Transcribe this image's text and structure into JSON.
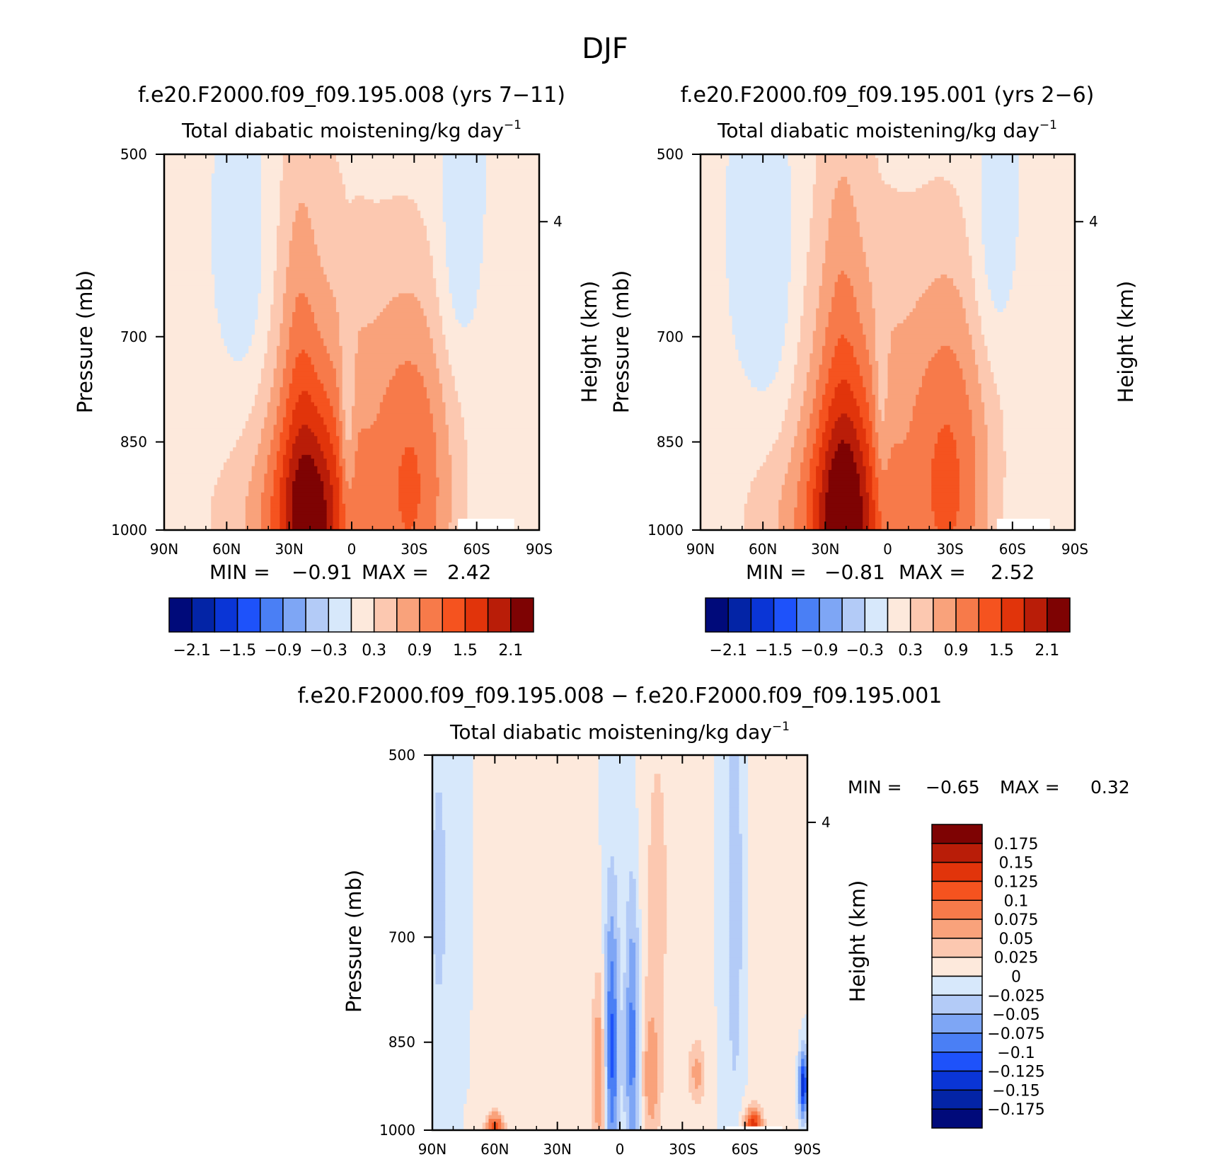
{
  "figure": {
    "title": "DJF"
  },
  "colors": {
    "palette": [
      "#000a7a",
      "#0324a6",
      "#0a35d6",
      "#1e52fa",
      "#4a7ff5",
      "#7ea6f5",
      "#b3cbf7",
      "#d7e8fb",
      "#fde9dc",
      "#fcc8b0",
      "#f9a27b",
      "#f77a4a",
      "#f5531f",
      "#e1340b",
      "#b91d08",
      "#7e0303"
    ],
    "background": "#d7e8fb",
    "missing": "#ffffff"
  },
  "chart_data": [
    {
      "type": "heatmap",
      "panel": "left",
      "title": "f.e20.F2000.f09_f09.195.008 (yrs 7−11)",
      "subtitle": "Total diabatic moistening/kg day",
      "subtitle_exp": "−1",
      "ylabel": "Pressure (mb)",
      "ylabel_right": "Height (km)",
      "xticks": [
        "90N",
        "60N",
        "30N",
        "0",
        "30S",
        "60S",
        "90S"
      ],
      "xlim": [
        -90,
        90
      ],
      "yticks": [
        500,
        700,
        850,
        1000
      ],
      "ylim": [
        1000,
        500
      ],
      "height_ticks": [
        4
      ],
      "stats": {
        "min_label": "MIN =",
        "min": "−0.91",
        "max_label": "MAX =",
        "max": "2.42"
      },
      "levels": [
        -2.4,
        -2.1,
        -1.8,
        -1.5,
        -1.2,
        -0.9,
        -0.6,
        -0.3,
        0,
        0.3,
        0.6,
        0.9,
        1.2,
        1.5,
        1.8,
        2.1,
        2.4
      ],
      "colorbar_labels": [
        "−2.1",
        "−1.5",
        "−0.9",
        "−0.3",
        "0.3",
        "0.9",
        "1.5",
        "2.1"
      ],
      "features": [
        {
          "lat": 17,
          "p": 1000,
          "slat": 22,
          "sp": 330,
          "amp": 0.95
        },
        {
          "lat": 20,
          "p": 985,
          "slat": 12,
          "sp": 140,
          "amp": 1.35
        },
        {
          "lat": 25,
          "p": 720,
          "slat": 6,
          "sp": 200,
          "amp": 0.35
        },
        {
          "lat": -30,
          "p": 960,
          "slat": 15,
          "sp": 230,
          "amp": 1.05
        },
        {
          "lat": -30,
          "p": 770,
          "slat": 24,
          "sp": 150,
          "amp": 0.18
        },
        {
          "lat": 55,
          "p": 975,
          "slat": 22,
          "sp": 100,
          "amp": 0.28
        },
        {
          "lat": 2,
          "p": 820,
          "slat": 2.5,
          "sp": 120,
          "amp": -0.55
        },
        {
          "lat": 50,
          "p": 620,
          "slat": 8,
          "sp": 110,
          "amp": -0.35
        },
        {
          "lat": -50,
          "p": 620,
          "slat": 7,
          "sp": 110,
          "amp": -0.35
        }
      ],
      "missing_regions": [
        {
          "lat_from": -51,
          "lat_to": -78,
          "p_from": 980,
          "p_to": 1000
        }
      ]
    },
    {
      "type": "heatmap",
      "panel": "right",
      "title": "f.e20.F2000.f09_f09.195.001 (yrs 2−6)",
      "subtitle": "Total diabatic moistening/kg day",
      "subtitle_exp": "−1",
      "ylabel": "Pressure (mb)",
      "ylabel_right": "Height (km)",
      "xticks": [
        "90N",
        "60N",
        "30N",
        "0",
        "30S",
        "60S",
        "90S"
      ],
      "xlim": [
        -90,
        90
      ],
      "yticks": [
        500,
        700,
        850,
        1000
      ],
      "ylim": [
        1000,
        500
      ],
      "height_ticks": [
        4
      ],
      "stats": {
        "min_label": "MIN =",
        "min": "−0.81",
        "max_label": "MAX =",
        "max": "2.52"
      },
      "levels": [
        -2.4,
        -2.1,
        -1.8,
        -1.5,
        -1.2,
        -0.9,
        -0.6,
        -0.3,
        0,
        0.3,
        0.6,
        0.9,
        1.2,
        1.5,
        1.8,
        2.1,
        2.4
      ],
      "colorbar_labels": [
        "−2.1",
        "−1.5",
        "−0.9",
        "−0.3",
        "0.3",
        "0.9",
        "1.5",
        "2.1"
      ],
      "features": [
        {
          "lat": 19,
          "p": 1000,
          "slat": 22,
          "sp": 330,
          "amp": 1.0
        },
        {
          "lat": 21,
          "p": 985,
          "slat": 11,
          "sp": 140,
          "amp": 1.4
        },
        {
          "lat": 22,
          "p": 700,
          "slat": 7,
          "sp": 210,
          "amp": 0.35
        },
        {
          "lat": -30,
          "p": 960,
          "slat": 15,
          "sp": 240,
          "amp": 1.1
        },
        {
          "lat": -30,
          "p": 760,
          "slat": 24,
          "sp": 150,
          "amp": 0.2
        },
        {
          "lat": 55,
          "p": 975,
          "slat": 22,
          "sp": 100,
          "amp": 0.28
        },
        {
          "lat": 3,
          "p": 800,
          "slat": 2.5,
          "sp": 110,
          "amp": -0.4
        },
        {
          "lat": 55,
          "p": 640,
          "slat": 9,
          "sp": 130,
          "amp": -0.35
        },
        {
          "lat": -50,
          "p": 610,
          "slat": 7,
          "sp": 100,
          "amp": -0.35
        }
      ],
      "missing_regions": [
        {
          "lat_from": -53,
          "lat_to": -78,
          "p_from": 980,
          "p_to": 1000
        }
      ]
    },
    {
      "type": "heatmap",
      "panel": "diff",
      "title": "f.e20.F2000.f09_f09.195.008 − f.e20.F2000.f09_f09.195.001",
      "subtitle": "Total diabatic moistening/kg day",
      "subtitle_exp": "−1",
      "ylabel": "Pressure (mb)",
      "ylabel_right": "Height (km)",
      "xticks": [
        "90N",
        "60N",
        "30N",
        "0",
        "30S",
        "60S",
        "90S"
      ],
      "xlim": [
        -90,
        90
      ],
      "yticks": [
        500,
        700,
        850,
        1000
      ],
      "ylim": [
        1000,
        500
      ],
      "height_ticks": [
        4
      ],
      "stats": {
        "min_label": "MIN =",
        "min": "−0.65",
        "max_label": "MAX =",
        "max": "0.32"
      },
      "levels": [
        -0.2,
        -0.175,
        -0.15,
        -0.125,
        -0.1,
        -0.075,
        -0.05,
        -0.025,
        0,
        0.025,
        0.05,
        0.075,
        0.1,
        0.125,
        0.15,
        0.175,
        0.2
      ],
      "colorbar_labels": [
        "0.175",
        "0.15",
        "0.125",
        "0.1",
        "0.075",
        "0.05",
        "0.025",
        "0",
        "−0.025",
        "−0.05",
        "−0.075",
        "−0.1",
        "−0.125",
        "−0.15",
        "−0.175"
      ],
      "features": [
        {
          "lat": 4,
          "p": 860,
          "slat": 2.5,
          "sp": 150,
          "amp": -0.11
        },
        {
          "lat": -6,
          "p": 850,
          "slat": 2.5,
          "sp": 160,
          "amp": -0.09
        },
        {
          "lat": 10,
          "p": 900,
          "slat": 2.5,
          "sp": 110,
          "amp": 0.08
        },
        {
          "lat": -15,
          "p": 910,
          "slat": 3,
          "sp": 80,
          "amp": 0.06
        },
        {
          "lat": -37,
          "p": 900,
          "slat": 3,
          "sp": 40,
          "amp": 0.06
        },
        {
          "lat": -64,
          "p": 995,
          "slat": 3,
          "sp": 25,
          "amp": 0.15
        },
        {
          "lat": 60,
          "p": 995,
          "slat": 3,
          "sp": 20,
          "amp": 0.12
        },
        {
          "lat": 45,
          "p": 700,
          "slat": 5,
          "sp": 250,
          "amp": 0.02
        },
        {
          "lat": -18,
          "p": 650,
          "slat": 7,
          "sp": 220,
          "amp": 0.03
        },
        {
          "lat": -77,
          "p": 700,
          "slat": 6,
          "sp": 260,
          "amp": 0.02
        },
        {
          "lat": -55,
          "p": 660,
          "slat": 2.5,
          "sp": 200,
          "amp": -0.05
        },
        {
          "lat": 87,
          "p": 650,
          "slat": 3,
          "sp": 120,
          "amp": -0.04
        },
        {
          "lat": -88,
          "p": 920,
          "slat": 1.5,
          "sp": 40,
          "amp": -0.15
        }
      ],
      "missing_regions": [
        {
          "lat_from": -51,
          "lat_to": -78,
          "p_from": 990,
          "p_to": 1000
        }
      ]
    }
  ]
}
